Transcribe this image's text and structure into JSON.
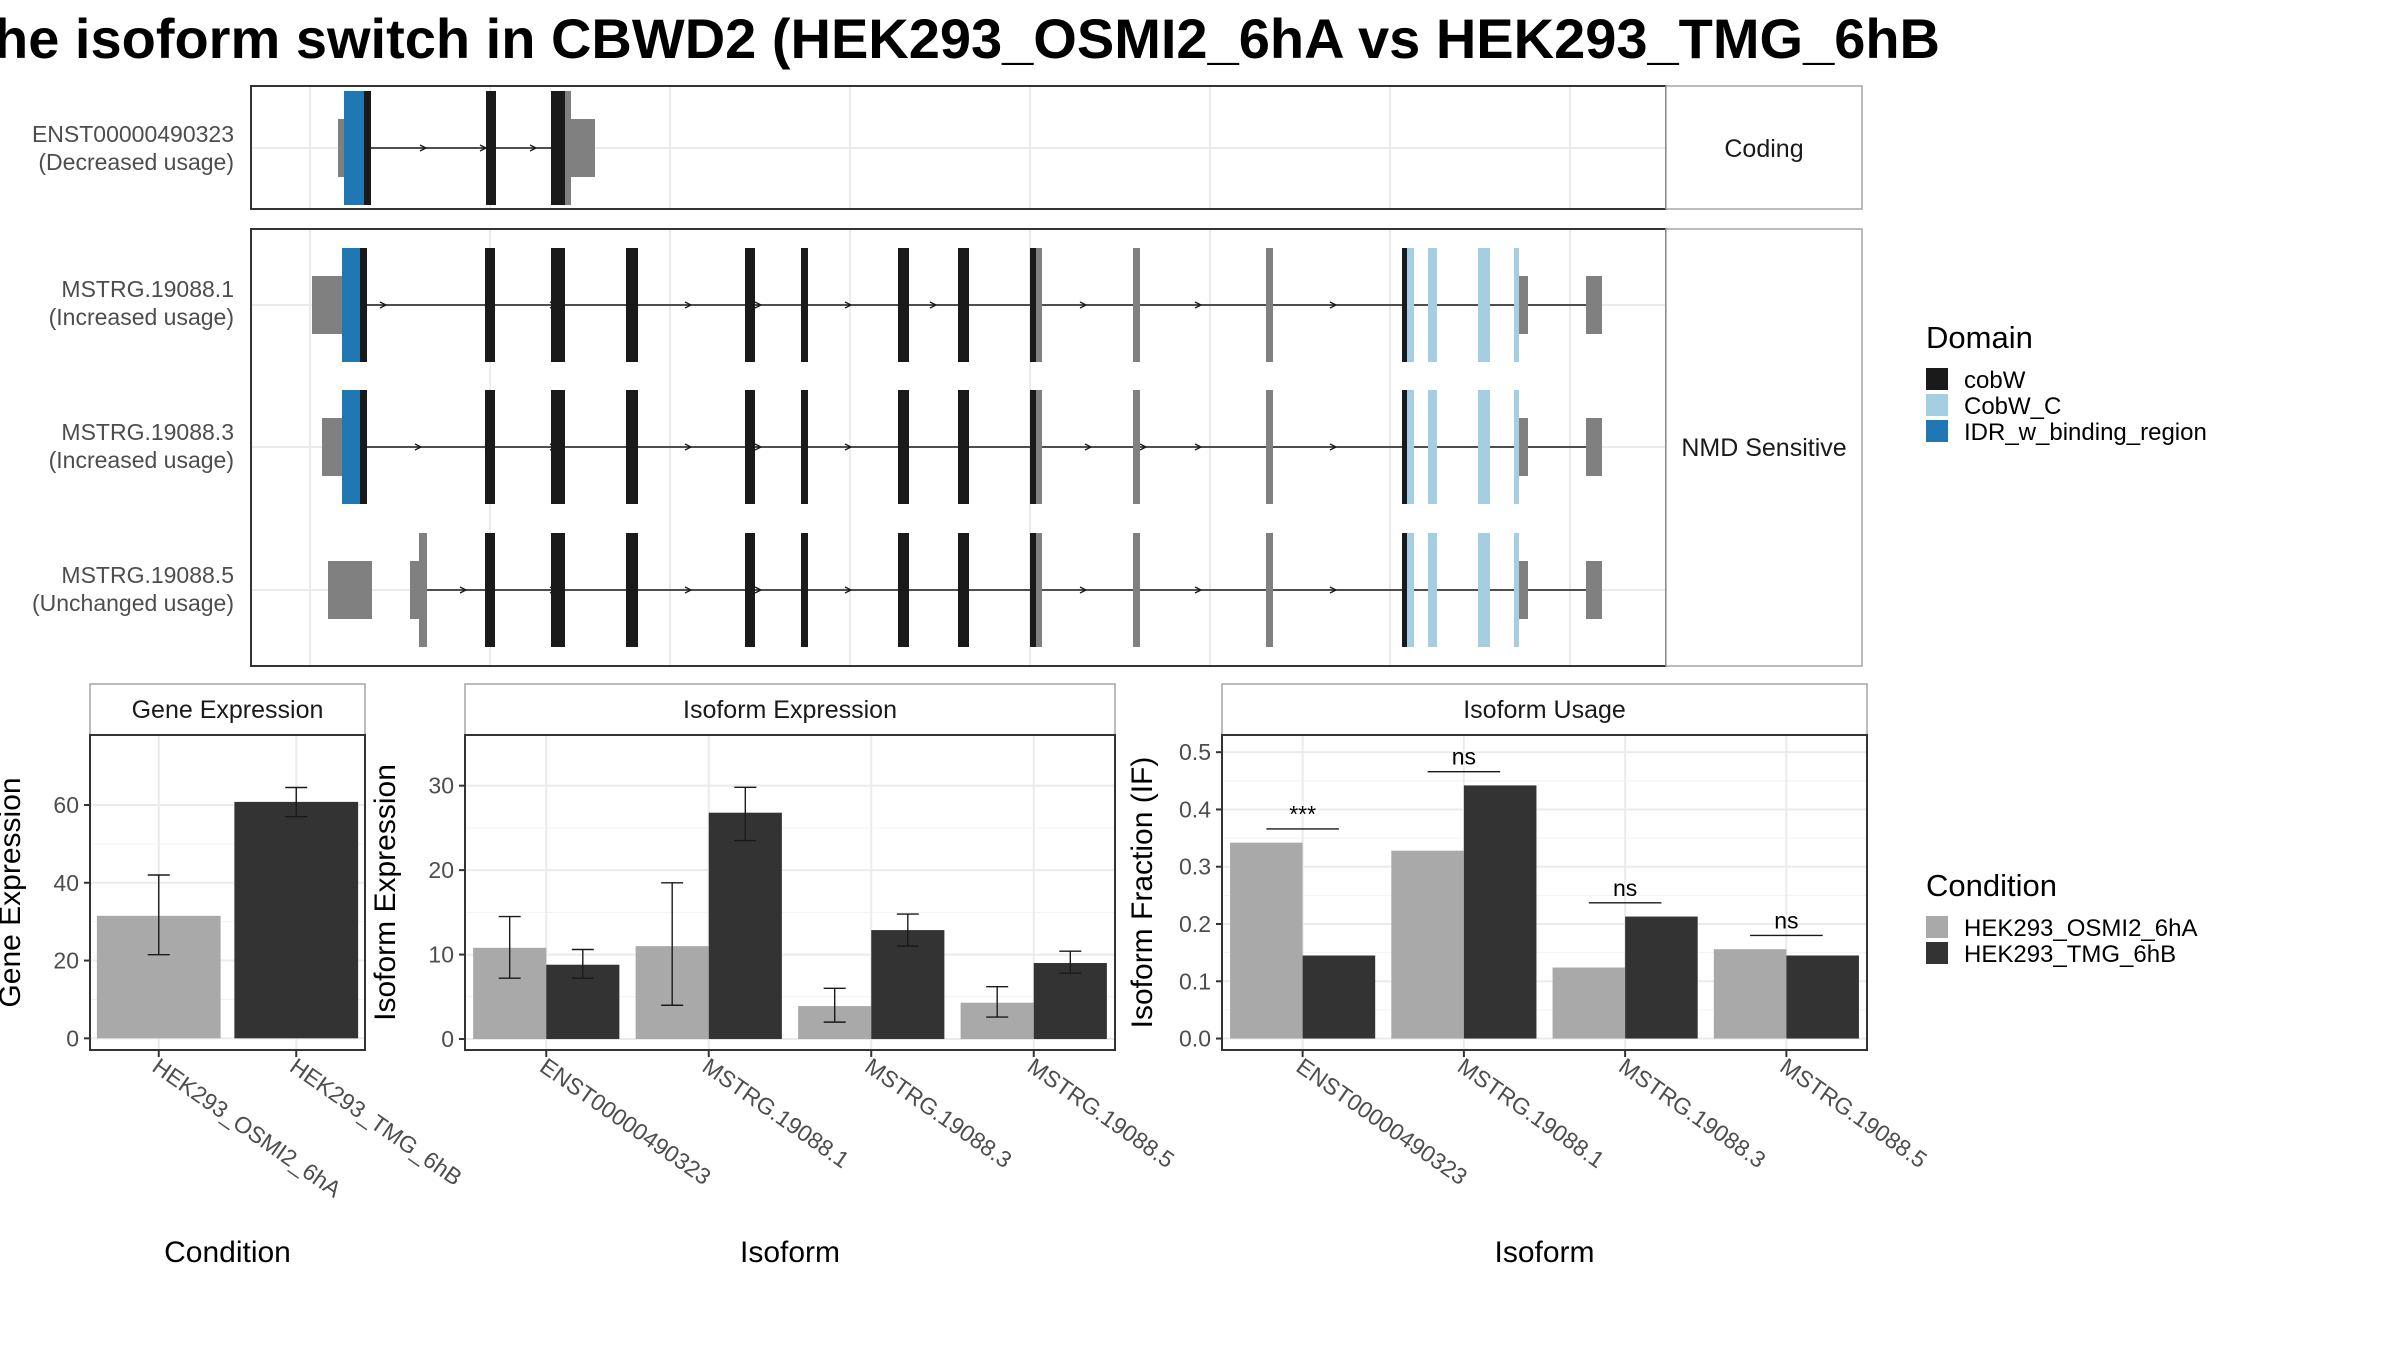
{
  "title": "he isoform switch in CBWD2 (HEK293_OSMI2_6hA vs HEK293_TMG_6hB",
  "colors": {
    "cobW": "#1a1a1a",
    "CobW_C": "#a6cee3",
    "IDR_w_binding_region": "#1f78b4",
    "noncoding_exon": "#808080",
    "condition_A": "#a9a9a9",
    "condition_B": "#333333"
  },
  "transcript_structures": {
    "facets": [
      "Coding",
      "NMD Sensitive"
    ],
    "rows": [
      {
        "name": "ENST00000490323",
        "usage": "(Decreased usage)",
        "facet": "Coding"
      },
      {
        "name": "MSTRG.19088.1",
        "usage": "(Increased usage)",
        "facet": "NMD Sensitive"
      },
      {
        "name": "MSTRG.19088.3",
        "usage": "(Increased usage)",
        "facet": "NMD Sensitive"
      },
      {
        "name": "MSTRG.19088.5",
        "usage": "(Unchanged usage)",
        "facet": "NMD Sensitive"
      }
    ]
  },
  "legends": {
    "domain": {
      "title": "Domain",
      "items": [
        "cobW",
        "CobW_C",
        "IDR_w_binding_region"
      ]
    },
    "condition": {
      "title": "Condition",
      "items": [
        "HEK293_OSMI2_6hA",
        "HEK293_TMG_6hB"
      ]
    }
  },
  "chart_data": [
    {
      "type": "bar",
      "title": "Gene Expression",
      "xlabel": "Condition",
      "ylabel": "Gene Expression",
      "categories": [
        "HEK293_OSMI2_6hA",
        "HEK293_TMG_6hB"
      ],
      "values": [
        31.5,
        60.8
      ],
      "error_low": [
        21.5,
        57.0
      ],
      "error_high": [
        42.0,
        64.5
      ],
      "yticks": [
        0,
        20,
        40,
        60
      ],
      "ylim": [
        -3,
        78
      ]
    },
    {
      "type": "bar",
      "title": "Isoform Expression",
      "xlabel": "Isoform",
      "ylabel": "Isoform Expression",
      "categories": [
        "ENST00000490323",
        "MSTRG.19088.1",
        "MSTRG.19088.3",
        "MSTRG.19088.5"
      ],
      "series": [
        {
          "name": "HEK293_OSMI2_6hA",
          "values": [
            10.8,
            11.0,
            3.9,
            4.3
          ],
          "error_low": [
            7.2,
            4.0,
            2.0,
            2.6
          ],
          "error_high": [
            14.5,
            18.5,
            6.0,
            6.2
          ]
        },
        {
          "name": "HEK293_TMG_6hB",
          "values": [
            8.8,
            26.8,
            12.9,
            9.0
          ],
          "error_low": [
            7.2,
            23.5,
            11.0,
            7.8
          ],
          "error_high": [
            10.6,
            29.8,
            14.8,
            10.4
          ]
        }
      ],
      "yticks": [
        0,
        10,
        20,
        30
      ],
      "ylim": [
        -1.3,
        36
      ]
    },
    {
      "type": "bar",
      "title": "Isoform Usage",
      "xlabel": "Isoform",
      "ylabel": "Isoform Fraction (IF)",
      "categories": [
        "ENST00000490323",
        "MSTRG.19088.1",
        "MSTRG.19088.3",
        "MSTRG.19088.5"
      ],
      "series": [
        {
          "name": "HEK293_OSMI2_6hA",
          "values": [
            0.342,
            0.328,
            0.124,
            0.156
          ]
        },
        {
          "name": "HEK293_TMG_6hB",
          "values": [
            0.145,
            0.442,
            0.213,
            0.145
          ]
        }
      ],
      "significance": [
        {
          "label": "***",
          "y": 0.366
        },
        {
          "label": "ns",
          "y": 0.466
        },
        {
          "label": "ns",
          "y": 0.237
        },
        {
          "label": "ns",
          "y": 0.18
        }
      ],
      "yticks": [
        0.0,
        0.1,
        0.2,
        0.3,
        0.4,
        0.5
      ],
      "ylim": [
        -0.02,
        0.53
      ]
    }
  ]
}
